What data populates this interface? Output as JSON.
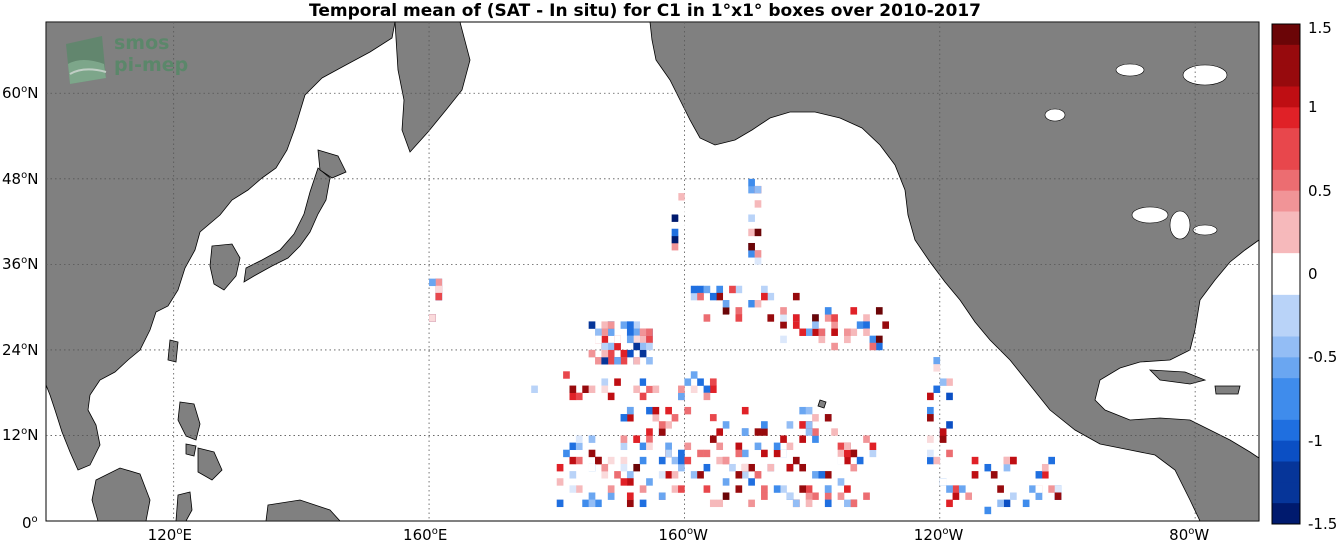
{
  "title": "Temporal mean of (SAT - In situ) for C1 in 1°x1° boxes over 2010-2017",
  "logo": {
    "line1": "smos",
    "line2": "pi-mep"
  },
  "y_axis": [
    {
      "val": "60",
      "hemi": "N",
      "lat": 60
    },
    {
      "val": "48",
      "hemi": "N",
      "lat": 48
    },
    {
      "val": "36",
      "hemi": "N",
      "lat": 36
    },
    {
      "val": "24",
      "hemi": "N",
      "lat": 24
    },
    {
      "val": "12",
      "hemi": "N",
      "lat": 12
    },
    {
      "val": "0",
      "hemi": "",
      "lat": 0
    }
  ],
  "x_axis": [
    {
      "val": "120",
      "hemi": "E",
      "lon": 120
    },
    {
      "val": "160",
      "hemi": "E",
      "lon": 160
    },
    {
      "val": "160",
      "hemi": "W",
      "lon": 200
    },
    {
      "val": "120",
      "hemi": "W",
      "lon": 240
    },
    {
      "val": "80",
      "hemi": "W",
      "lon": 280
    }
  ],
  "colorbar": {
    "vmin": -1.5,
    "vmax": 1.5,
    "tick_labels": [
      "1.5",
      "1",
      "0.5",
      "0",
      "-0.5",
      "-1",
      "-1.5"
    ],
    "tick_values": [
      1.5,
      1,
      0.5,
      0,
      -0.5,
      -1,
      -1.5
    ]
  },
  "colors": {
    "land": "#808080",
    "ocean": "#ffffff",
    "grid": "#555555"
  }
}
